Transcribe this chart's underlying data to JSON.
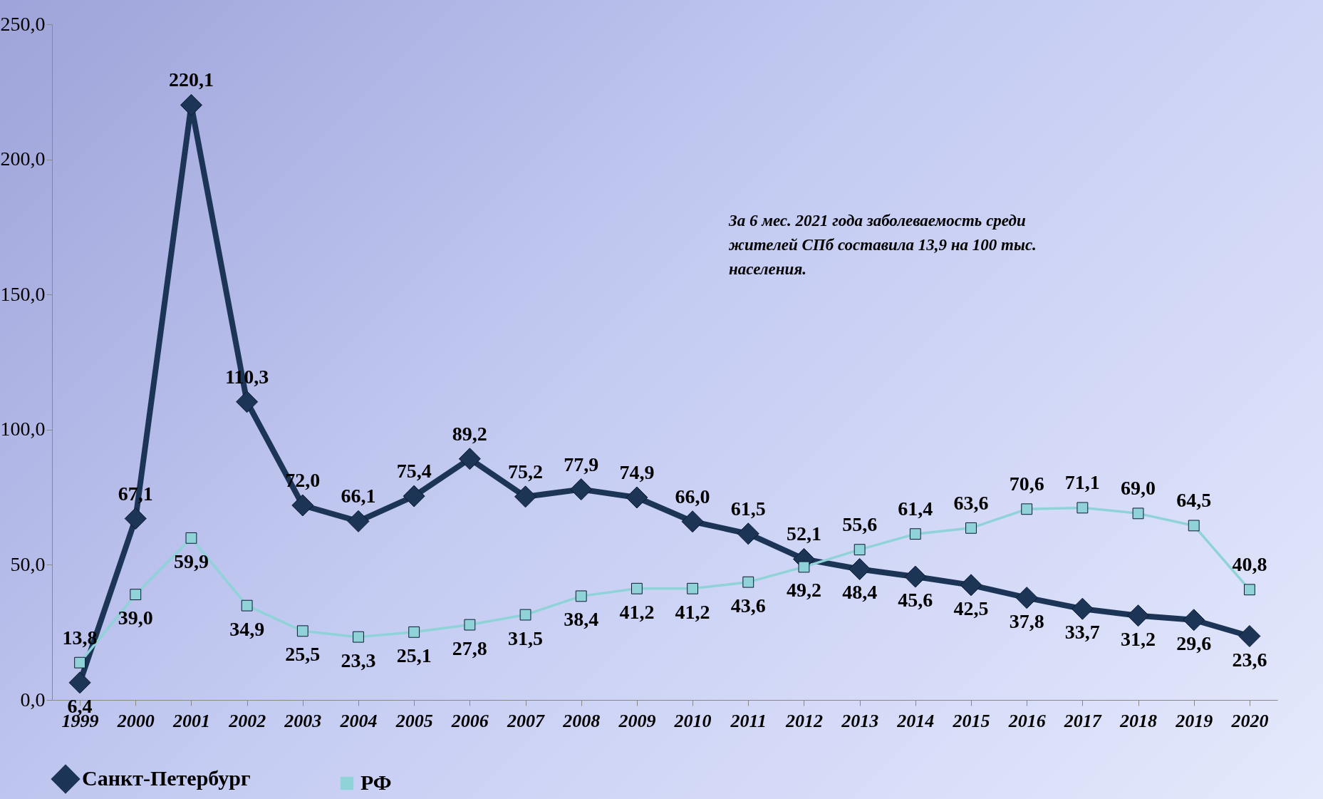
{
  "chart_data": {
    "type": "line",
    "categories": [
      "1999",
      "2000",
      "2001",
      "2002",
      "2003",
      "2004",
      "2005",
      "2006",
      "2007",
      "2008",
      "2009",
      "2010",
      "2011",
      "2012",
      "2013",
      "2014",
      "2015",
      "2016",
      "2017",
      "2018",
      "2019",
      "2020"
    ],
    "series": [
      {
        "name": "Санкт-Петербург",
        "color": "#1c3557",
        "marker": "diamond",
        "values": [
          6.4,
          67.1,
          220.1,
          110.3,
          72.0,
          66.1,
          75.4,
          89.2,
          75.2,
          77.9,
          74.9,
          66.0,
          61.5,
          52.1,
          48.4,
          45.6,
          42.5,
          37.8,
          33.7,
          31.2,
          29.6,
          23.6
        ],
        "value_labels": [
          "6,4",
          "67,1",
          "220,1",
          "110,3",
          "72,0",
          "66,1",
          "75,4",
          "89,2",
          "75,2",
          "77,9",
          "74,9",
          "66,0",
          "61,5",
          "52,1",
          "48,4",
          "45,6",
          "42,5",
          "37,8",
          "33,7",
          "31,2",
          "29,6",
          "23,6"
        ]
      },
      {
        "name": "РФ",
        "color": "#8fd3d8",
        "marker": "square",
        "values": [
          13.8,
          39.0,
          59.9,
          34.9,
          25.5,
          23.3,
          25.1,
          27.8,
          31.5,
          38.4,
          41.2,
          41.2,
          43.6,
          49.2,
          55.6,
          61.4,
          63.6,
          70.6,
          71.1,
          69.0,
          64.5,
          40.8
        ],
        "value_labels": [
          "13,8",
          "39,0",
          "59,9",
          "34,9",
          "25,5",
          "23,3",
          "25,1",
          "27,8",
          "31,5",
          "38,4",
          "41,2",
          "41,2",
          "43,6",
          "49,2",
          "55,6",
          "61,4",
          "63,6",
          "70,6",
          "71,1",
          "69,0",
          "64,5",
          "40,8"
        ]
      }
    ],
    "ylim": [
      0,
      250
    ],
    "yticks": [
      {
        "value": 0,
        "label": "0,0"
      },
      {
        "value": 50,
        "label": "50,0"
      },
      {
        "value": 100,
        "label": "100,0"
      },
      {
        "value": 150,
        "label": "150,0"
      },
      {
        "value": 200,
        "label": "200,0"
      },
      {
        "value": 250,
        "label": "250,0"
      }
    ],
    "legend": "bottom",
    "grid": false,
    "annotations": [
      "За 6 мес. 2021 года заболеваемость среди\nжителей СПб составила 13,9 на 100 тыс.\nнаселения."
    ]
  }
}
